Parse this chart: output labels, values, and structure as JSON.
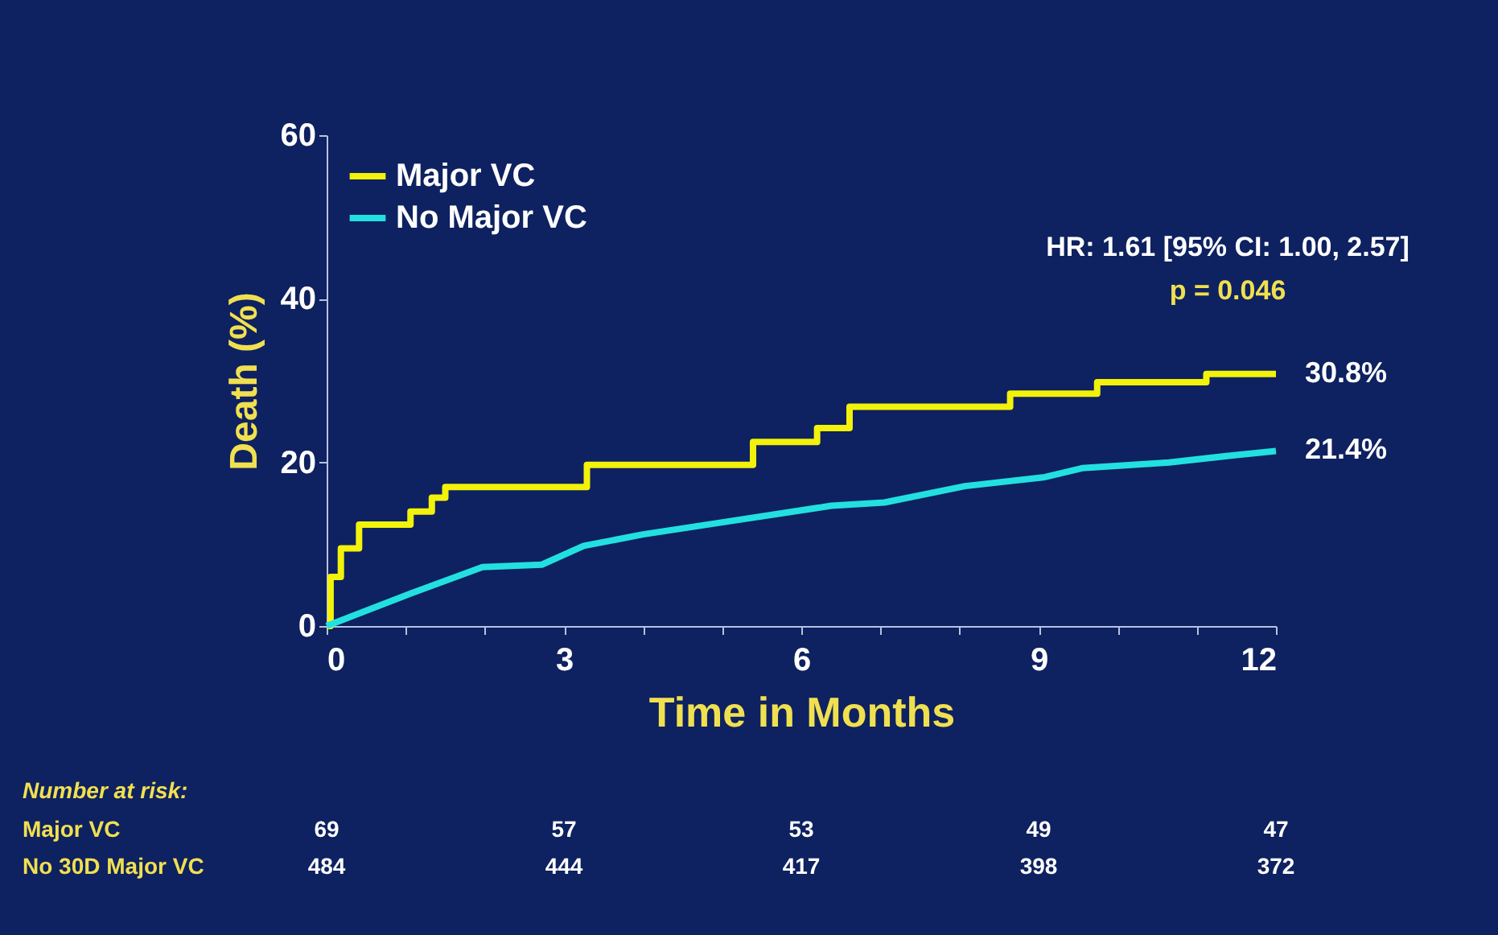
{
  "chart_data": {
    "type": "step",
    "xlabel": "Time in Months",
    "ylabel": "Death (%)",
    "xlim": [
      0,
      12
    ],
    "ylim": [
      0,
      60
    ],
    "xticks": [
      0,
      {
        "value": 1,
        "label": null
      },
      {
        "value": 2,
        "label": null
      },
      3,
      {
        "value": 4,
        "label": null
      },
      {
        "value": 5,
        "label": null
      },
      6,
      {
        "value": 7,
        "label": null
      },
      {
        "value": 8,
        "label": null
      },
      9,
      {
        "value": 10,
        "label": null
      },
      {
        "value": 11,
        "label": null
      },
      12
    ],
    "yticks": [
      0,
      20,
      40,
      60
    ],
    "grid": false,
    "legend": "top left",
    "marker": "none",
    "line_style": "solid",
    "series": [
      {
        "name": "Major VC",
        "color": "#f2f20a",
        "x": [
          0,
          0.05,
          0.18,
          0.41,
          1.06,
          1.33,
          1.5,
          3.29,
          5.39,
          6.2,
          6.61,
          8.64,
          9.74,
          11.12,
          12
        ],
        "values": [
          0,
          6,
          9.5,
          12.4,
          14,
          15.7,
          17,
          19.7,
          22.5,
          24.2,
          26.8,
          28.4,
          29.8,
          30.8,
          30.8
        ]
      },
      {
        "name": "No Major VC",
        "color": "#22e0e0",
        "type": "line",
        "x": [
          0,
          0.96,
          1.97,
          2.72,
          3.25,
          4.0,
          5.02,
          6.38,
          7.05,
          8.07,
          9.08,
          9.55,
          10.65,
          11.4,
          12
        ],
        "values": [
          0,
          3.6,
          7.2,
          7.5,
          9.8,
          11.2,
          12.7,
          14.7,
          15.1,
          17.1,
          18.2,
          19.3,
          20.0,
          20.8,
          21.4
        ]
      }
    ],
    "annotations": [
      "HR: 1.61 [95% CI: 1.00, 2.57]",
      "p = 0.046",
      {
        "text": "30.8%",
        "x": 12,
        "y": 30.8
      },
      {
        "text": "21.4%",
        "x": 12,
        "y": 21.4
      },
      "Number at risk:",
      "Major VC",
      "No 30D Major VC",
      "69",
      "57",
      "53",
      "49",
      "47",
      "484",
      "444",
      "417",
      "398",
      "372"
    ]
  }
}
